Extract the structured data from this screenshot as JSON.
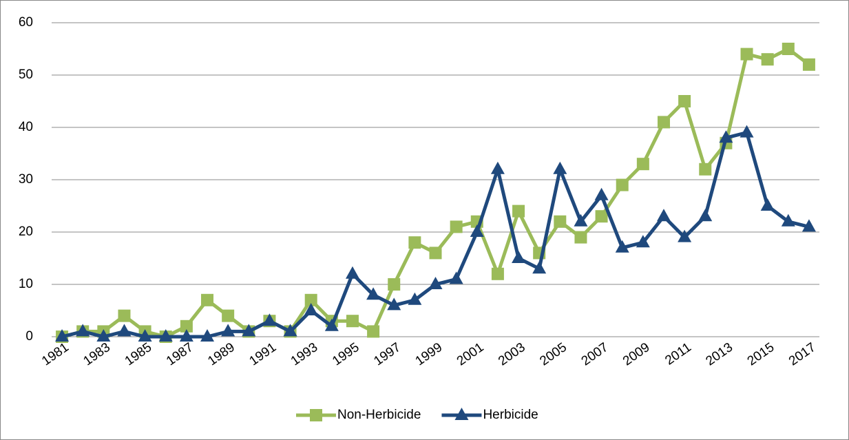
{
  "chart_data": {
    "type": "line",
    "categories": [
      "1981",
      null,
      "1983",
      null,
      "1985",
      null,
      "1987",
      null,
      "1989",
      null,
      "1991",
      null,
      "1993",
      null,
      "1995",
      null,
      "1997",
      null,
      "1999",
      null,
      "2001",
      null,
      "2003",
      null,
      "2005",
      null,
      "2007",
      null,
      "2009",
      null,
      "2011",
      null,
      "2013",
      null,
      "2015",
      null,
      "2017"
    ],
    "series": [
      {
        "name": "Non-Herbicide",
        "color": "#9bbb59",
        "marker": "square",
        "values": [
          0,
          1,
          1,
          4,
          1,
          0,
          2,
          7,
          4,
          1,
          3,
          1,
          7,
          3,
          3,
          1,
          10,
          18,
          16,
          21,
          22,
          12,
          24,
          16,
          22,
          19,
          23,
          29,
          33,
          41,
          45,
          32,
          37,
          54,
          53,
          55,
          52
        ]
      },
      {
        "name": "Herbicide",
        "color": "#1f497d",
        "marker": "triangle",
        "values": [
          0,
          1,
          0,
          1,
          0,
          0,
          0,
          0,
          1,
          1,
          3,
          1,
          5,
          2,
          12,
          8,
          6,
          7,
          10,
          11,
          20,
          32,
          15,
          13,
          32,
          22,
          27,
          17,
          18,
          23,
          19,
          23,
          38,
          39,
          25,
          22,
          21
        ]
      }
    ],
    "ylim": [
      0,
      60
    ],
    "yticks": [
      0,
      10,
      20,
      30,
      40,
      50,
      60
    ],
    "grid": true,
    "legend": "bottom"
  }
}
